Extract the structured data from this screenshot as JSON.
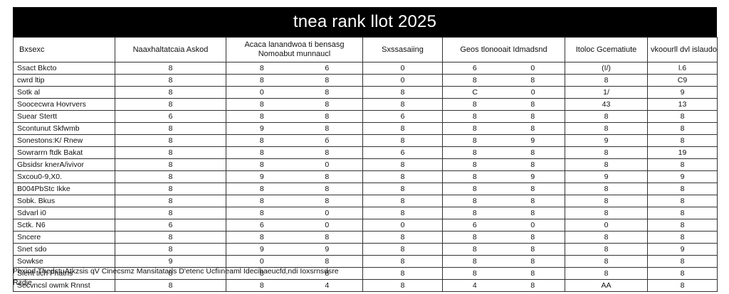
{
  "title": "tnea rank llot 2025",
  "columns": [
    "Bxsexc",
    "Naaxhaltatcaia Askod",
    "Acaca lanandwoa ti bensasg Nomoabut munnaucl",
    "Sxssasaiing",
    "Geos tlonooait Idmadsnd",
    "Itoloc Gcematiute",
    "vkoourll dvl islaudoza"
  ],
  "rows": [
    {
      "name": "Ssact Bkcto",
      "c1": "8",
      "c2a": "8",
      "c2b": "6",
      "c3": "0",
      "c4a": "6",
      "c4b": "0",
      "c5": "(І/)",
      "c6": "l.6"
    },
    {
      "name": "сwrd ltip",
      "c1": "8",
      "c2a": "8",
      "c2b": "8",
      "c3": "0",
      "c4a": "8",
      "c4b": "8",
      "c5": "8",
      "c6": "C9"
    },
    {
      "name": "Sotk al",
      "c1": "8",
      "c2a": "0",
      "c2b": "8",
      "c3": "8",
      "c4a": "C",
      "c4b": "0",
      "c5": "1/",
      "c6": "9"
    },
    {
      "name": "Soocecwra Hovrvers",
      "c1": "8",
      "c2a": "8",
      "c2b": "8",
      "c3": "8",
      "c4a": "8",
      "c4b": "8",
      "c5": "43",
      "c6": "13"
    },
    {
      "name": "Suear Stertt",
      "c1": "6",
      "c2a": "8",
      "c2b": "8",
      "c3": "6",
      "c4a": "8",
      "c4b": "8",
      "c5": "8",
      "c6": "8"
    },
    {
      "name": "Scontunut Skfwmb",
      "c1": "8",
      "c2a": "9",
      "c2b": "8",
      "c3": "8",
      "c4a": "8",
      "c4b": "8",
      "c5": "8",
      "c6": "8"
    },
    {
      "name": "Sonestons:K/ Rnew",
      "c1": "8",
      "c2a": "8",
      "c2b": "б",
      "c3": "8",
      "c4a": "8",
      "c4b": "9",
      "c5": "9",
      "c6": "8"
    },
    {
      "name": "Sowrarrn ftdk Bakat",
      "c1": "8",
      "c2a": "8",
      "c2b": "8",
      "c3": "6",
      "c4a": "8",
      "c4b": "8",
      "c5": "8",
      "c6": "19"
    },
    {
      "name": "Gbsidsr knerA/ivivor",
      "c1": "8",
      "c2a": "8",
      "c2b": "0",
      "c3": "8",
      "c4a": "8",
      "c4b": "8",
      "c5": "8",
      "c6": "8"
    },
    {
      "name": "Sхcou0-9,Х0.",
      "c1": "8",
      "c2a": "9",
      "c2b": "8",
      "c3": "8",
      "c4a": "8",
      "c4b": "9",
      "c5": "9",
      "c6": "9"
    },
    {
      "name": "B004PbStc Ikke",
      "c1": "8",
      "c2a": "8",
      "c2b": "8",
      "c3": "8",
      "c4a": "8",
      "c4b": "8",
      "c5": "8",
      "c6": "8"
    },
    {
      "name": "Sobk. Bkus",
      "c1": "8",
      "c2a": "8",
      "c2b": "8",
      "c3": "8",
      "c4a": "8",
      "c4b": "8",
      "c5": "8",
      "c6": "8"
    },
    {
      "name": "Sdvarl i0",
      "c1": "8",
      "c2a": "8",
      "c2b": "0",
      "c3": "8",
      "c4a": "8",
      "c4b": "8",
      "c5": "8",
      "c6": "8"
    },
    {
      "name": "Sctk. N6",
      "c1": "6",
      "c2a": "6",
      "c2b": "0",
      "c3": "0",
      "c4a": "6",
      "c4b": "0",
      "c5": "0",
      "c6": "8"
    },
    {
      "name": "Sncere",
      "c1": "8",
      "c2a": "8",
      "c2b": "8",
      "c3": "8",
      "c4a": "8",
      "c4b": "8",
      "c5": "8",
      "c6": "8"
    },
    {
      "name": "Snet sdo",
      "c1": "8",
      "c2a": "9",
      "c2b": "9",
      "c3": "8",
      "c4a": "8",
      "c4b": "8",
      "c5": "8",
      "c6": "9"
    },
    {
      "name": "Sowkse",
      "c1": "9",
      "c2a": "0",
      "c2b": "8",
      "c3": "8",
      "c4a": "8",
      "c4b": "8",
      "c5": "8",
      "c6": "8"
    },
    {
      "name": "Sient tich Fhatris",
      "c1": "8",
      "c2a": "8",
      "c2b": "8",
      "c3": "8",
      "c4a": "8",
      "c4b": "8",
      "c5": "8",
      "c6": "8"
    },
    {
      "name": "Secvncsl owmk Rnnst",
      "c1": "8",
      "c2a": "8",
      "c2b": "4",
      "c3": "8",
      "c4a": "4",
      "c4b": "8",
      "c5": "AA",
      "c6": "8"
    }
  ],
  "footnote": {
    "line1": "Pbxiod ThedstuΑtkzsis qV Cinecsmz Mansitatarls D'etenc Ucfiıneaml Idecihaeucfd,ndi Ioxsrnsdsre",
    "line2": "Rzdje"
  }
}
